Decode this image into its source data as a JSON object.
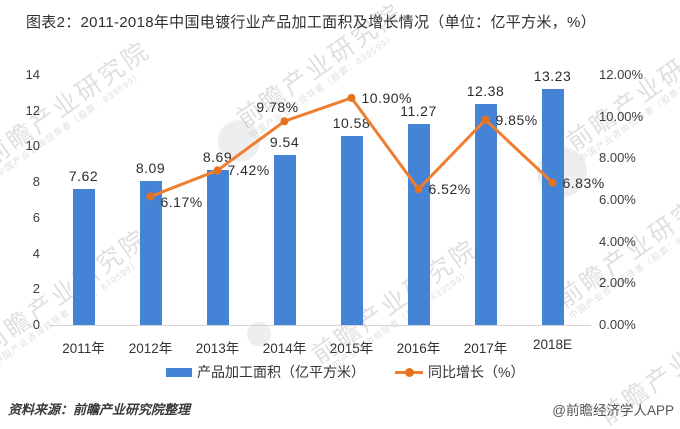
{
  "chart_data": {
    "type": "bar+line",
    "title": "图表2：2011-2018年中国电镀行业产品加工面积及增长情况（单位：亿平方米，%）",
    "categories": [
      "2011年",
      "2012年",
      "2013年",
      "2014年",
      "2015年",
      "2016年",
      "2017年",
      "2018E"
    ],
    "series": [
      {
        "name": "产品加工面积（亿平方米）",
        "type": "bar",
        "axis": "left",
        "color": "#4583D6",
        "values": [
          7.62,
          8.09,
          8.69,
          9.54,
          10.58,
          11.27,
          12.38,
          13.23
        ],
        "labels": [
          "7.62",
          "8.09",
          "8.69",
          "9.54",
          "10.58",
          "11.27",
          "12.38",
          "13.23"
        ]
      },
      {
        "name": "同比增长（%）",
        "type": "line",
        "axis": "right",
        "color": "#EE7E30",
        "marker_color": "#E8721C",
        "values": [
          null,
          6.17,
          7.42,
          9.78,
          10.9,
          6.52,
          9.85,
          6.83
        ],
        "labels": [
          null,
          "6.17%",
          "7.42%",
          "9.78%",
          "10.90%",
          "6.52%",
          "9.85%",
          "6.83%"
        ]
      }
    ],
    "left_axis": {
      "min": 0,
      "max": 14,
      "step": 2,
      "ticks": [
        "0",
        "2",
        "4",
        "6",
        "8",
        "10",
        "12",
        "14"
      ]
    },
    "right_axis": {
      "min": 0,
      "max": 12,
      "step": 2,
      "ticks": [
        "0.00%",
        "2.00%",
        "4.00%",
        "6.00%",
        "8.00%",
        "10.00%",
        "12.00%"
      ]
    },
    "grid": false,
    "legend_position": "bottom"
  },
  "footer": {
    "source": "资料来源：前瞻产业研究院整理",
    "credit": "@前瞻经济学人APP"
  },
  "watermark": {
    "text": "前瞻产业研究院",
    "subtext": "中国产业咨询领导者（股票：839599）"
  }
}
